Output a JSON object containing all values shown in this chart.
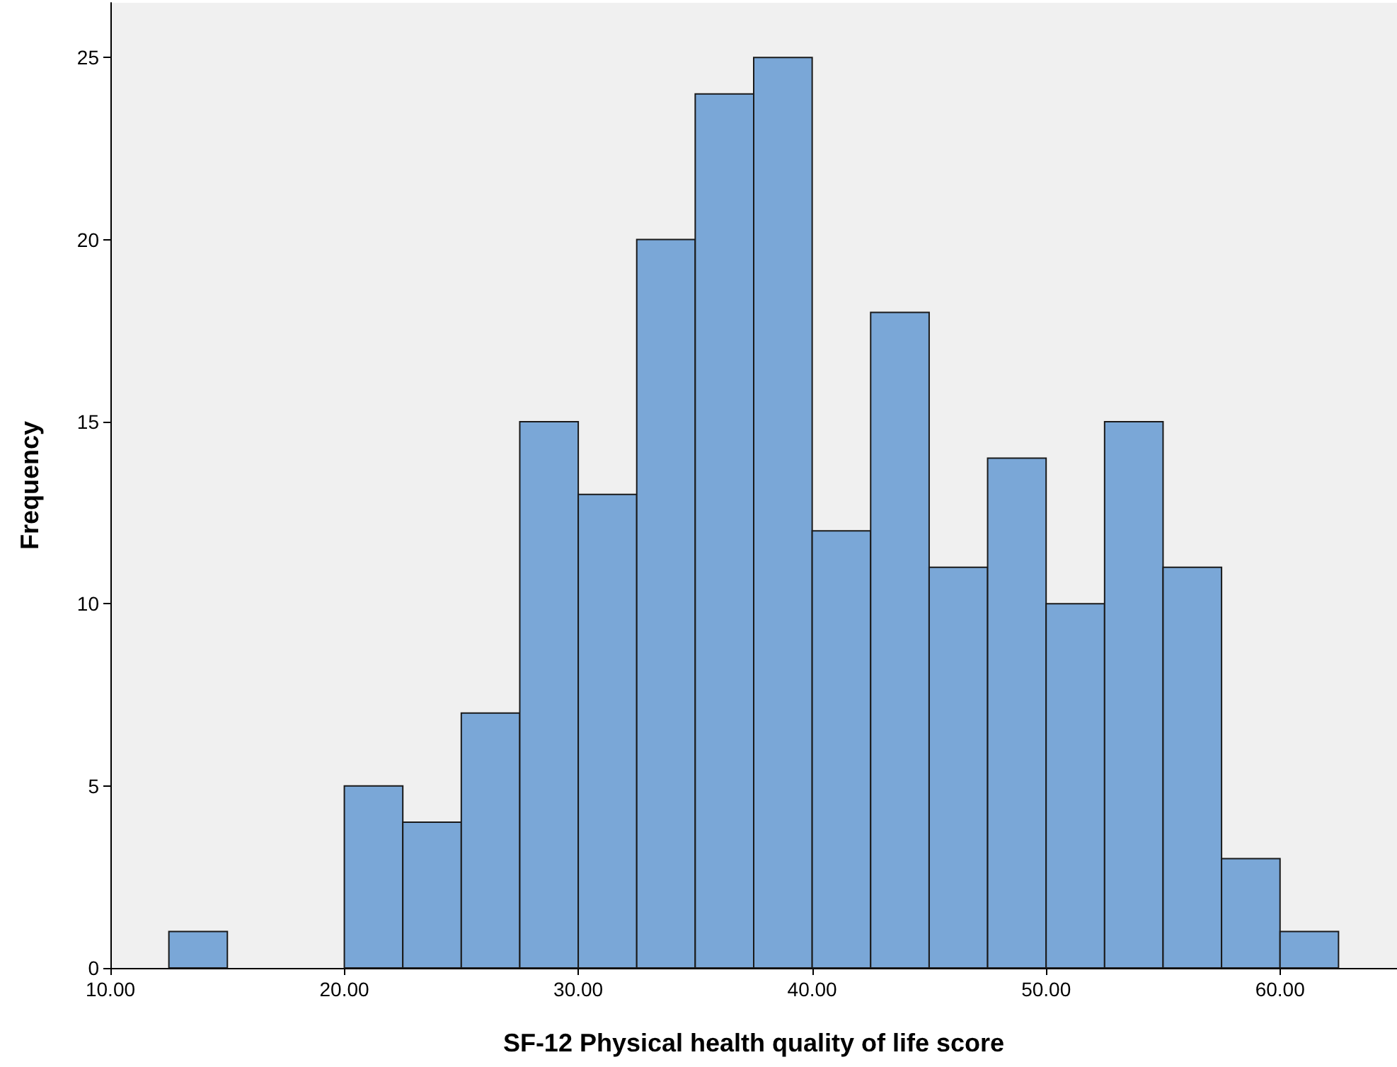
{
  "chart_data": {
    "type": "histogram",
    "xlabel": "SF-12 Physical health quality of life score",
    "ylabel": "Frequency",
    "bins": [
      12.5,
      15,
      17.5,
      20,
      22.5,
      25,
      27.5,
      30,
      32.5,
      35,
      37.5,
      40,
      42.5,
      45,
      47.5,
      50,
      52.5,
      55,
      57.5,
      60,
      62.5
    ],
    "values": [
      1,
      0,
      0,
      5,
      4,
      7,
      15,
      13,
      20,
      24,
      25,
      12,
      18,
      11,
      14,
      10,
      15,
      11,
      3,
      1
    ],
    "color": "#7aa7d7",
    "xlim": [
      10,
      65
    ],
    "xticks": [
      {
        "value": 10,
        "label": "10.00"
      },
      {
        "value": 20,
        "label": "20.00"
      },
      {
        "value": 30,
        "label": "30.00"
      },
      {
        "value": 40,
        "label": "40.00"
      },
      {
        "value": 50,
        "label": "50.00"
      },
      {
        "value": 60,
        "label": "60.00"
      }
    ],
    "ylim": [
      0,
      26.5
    ],
    "yticks": [
      0,
      5,
      10,
      15,
      20,
      25
    ],
    "grid": false
  }
}
